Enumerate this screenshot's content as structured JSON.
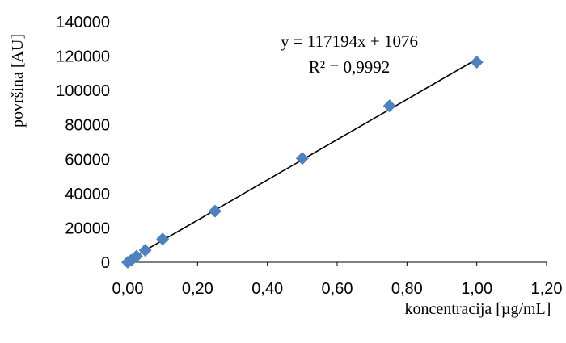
{
  "chart_data": {
    "type": "scatter",
    "xlabel": "koncentracija [µg/mL]",
    "ylabel": "površina [AU]",
    "xlim": [
      0,
      1.2
    ],
    "ylim": [
      0,
      140000
    ],
    "x_ticks": [
      0,
      0.2,
      0.4,
      0.6,
      0.8,
      1.0,
      1.2
    ],
    "x_tick_labels": [
      "0,00",
      "0,20",
      "0,40",
      "0,60",
      "0,80",
      "1,00",
      "1,20"
    ],
    "y_ticks": [
      0,
      20000,
      40000,
      60000,
      80000,
      100000,
      120000,
      140000
    ],
    "y_tick_labels": [
      "0",
      "20000",
      "40000",
      "60000",
      "80000",
      "100000",
      "120000",
      "140000"
    ],
    "grid": false,
    "marker_color": "#4F81BD",
    "line_color": "#000000",
    "series": [
      {
        "x": [
          0,
          0.01,
          0.025,
          0.05,
          0.1,
          0.25,
          0.5,
          0.75,
          1.0
        ],
        "y": [
          0,
          1200,
          3500,
          7000,
          13500,
          29800,
          60500,
          91000,
          116500
        ]
      }
    ],
    "trendline": {
      "slope": 117194,
      "intercept": 1076,
      "equation_text": "y = 117194x + 1076",
      "r2_text": "R² = 0,9992"
    }
  }
}
